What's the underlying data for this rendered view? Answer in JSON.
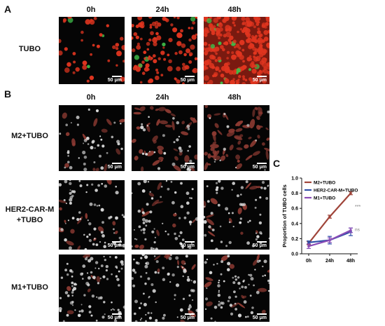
{
  "panels": {
    "a": {
      "letter": "A"
    },
    "b": {
      "letter": "B"
    },
    "c": {
      "letter": "C"
    }
  },
  "timepoints": [
    "0h",
    "24h",
    "48h"
  ],
  "rows": [
    {
      "label_lines": [
        "TUBO"
      ]
    },
    {
      "label_lines": [
        "M2+TUBO"
      ]
    },
    {
      "label_lines": [
        "HER2-CAR-M",
        "+TUBO"
      ]
    },
    {
      "label_lines": [
        "M1+TUBO"
      ]
    }
  ],
  "scale_bar": "50 μm",
  "colors": {
    "m2": "#a0453a",
    "her2": "#2f4fa8",
    "m1": "#8a4bb6",
    "tubo_fill": "#e0351f",
    "microscope_bg": "#050505"
  },
  "chart_data": {
    "type": "line",
    "categories": [
      "0h",
      "24h",
      "48h"
    ],
    "ylabel": "Proportion of TUBO cells",
    "xlabel": "",
    "ylim": [
      0.0,
      1.0
    ],
    "yticks": [
      "0.0",
      "0.2",
      "0.4",
      "0.6",
      "0.8",
      "1.0"
    ],
    "legend_position": "top-left",
    "series": [
      {
        "name": "M2+TUBO",
        "values": [
          0.14,
          0.49,
          0.8
        ],
        "errors": [
          0.02,
          0.02,
          0.02
        ],
        "color": "#a0453a"
      },
      {
        "name": "HER2-CAR-M+TUBO",
        "values": [
          0.15,
          0.18,
          0.29
        ],
        "errors": [
          0.02,
          0.05,
          0.05
        ],
        "color": "#2f4fa8"
      },
      {
        "name": "M1+TUBO",
        "values": [
          0.1,
          0.18,
          0.31
        ],
        "errors": [
          0.03,
          0.03,
          0.03
        ],
        "color": "#8a4bb6"
      }
    ],
    "annotations": [
      "***",
      "ns"
    ]
  }
}
